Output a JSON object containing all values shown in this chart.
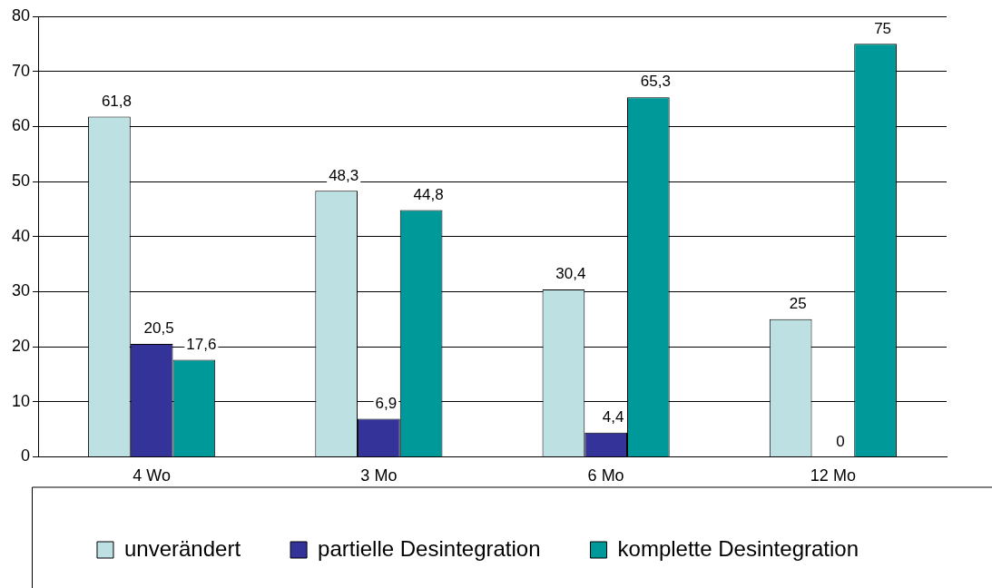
{
  "chart_data": {
    "type": "bar",
    "categories": [
      "4 Wo",
      "3 Mo",
      "6 Mo",
      "12 Mo"
    ],
    "series": [
      {
        "name": "unverändert",
        "color": "#bde0e3",
        "values": [
          61.8,
          48.3,
          30.4,
          25
        ],
        "value_labels": [
          "61,8",
          "48,3",
          "30,4",
          "25"
        ]
      },
      {
        "name": "partielle Desintegration",
        "color": "#333399",
        "values": [
          20.5,
          6.9,
          4.4,
          0
        ],
        "value_labels": [
          "20,5",
          "6,9",
          "4,4",
          "0"
        ]
      },
      {
        "name": "komplette Desintegration",
        "color": "#009999",
        "values": [
          17.6,
          44.8,
          65.3,
          75
        ],
        "value_labels": [
          "17,6",
          "44,8",
          "65,3",
          "75"
        ]
      }
    ],
    "ylim": [
      0,
      80
    ],
    "yticks": [
      0,
      10,
      20,
      30,
      40,
      50,
      60,
      70,
      80
    ],
    "grid": "y",
    "legend": "bottom"
  }
}
